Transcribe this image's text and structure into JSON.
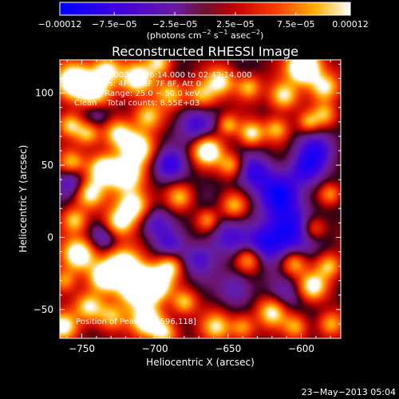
{
  "chart_data": {
    "type": "heatmap",
    "title": "Reconstructed RHESSI Image",
    "xlabel": "Heliocentric X (arcsec)",
    "ylabel": "Heliocentric Y (arcsec)",
    "xlim": [
      -765,
      -573
    ],
    "ylim": [
      -70,
      123
    ],
    "xticks": [
      -750,
      -700,
      -650,
      -600
    ],
    "xtick_labels": [
      "−750",
      "−700",
      "−650",
      "−600"
    ],
    "yticks": [
      -50,
      0,
      50,
      100
    ],
    "ytick_labels": [
      "−50",
      "0",
      "50",
      "100"
    ],
    "colorbar": {
      "range": [
        -0.00012,
        0.00012
      ],
      "ticks": [
        -0.00012,
        -7.5e-05,
        -2.5e-05,
        2.5e-05,
        7.5e-05,
        0.00012
      ],
      "tick_labels": [
        "−0.00012",
        "−7.5e−05",
        "−2.5e−05",
        "2.5e−05",
        "7.5e−05",
        "0.00012"
      ],
      "units_prefix": "(photons cm",
      "units_exp1": "−2",
      "units_mid": " s",
      "units_exp2": "−1",
      "units_mid2": " asec",
      "units_exp3": "−2",
      "units_suffix": ")"
    },
    "annotations": {
      "time_range": "4−Jul−2003 02:36:14.000 to 02:42:14.000",
      "detectors": "Detectors: 4F 5F 6F 7F 8F, Att 0",
      "energy": "Energy Range: 25.0 − 50.0 keV",
      "clean": "Clean",
      "total_counts": "Total counts: 8.55E+03",
      "peak": "Position of Peak = [−596,118]"
    },
    "peak": [
      -596,
      118
    ],
    "blobs": [
      [
        -755,
        108,
        1.7,
        9
      ],
      [
        -741,
        101,
        1.3,
        8
      ],
      [
        -733,
        116,
        1.3,
        7
      ],
      [
        -712,
        110,
        1.4,
        8
      ],
      [
        -705,
        84,
        1.1,
        7
      ],
      [
        -690,
        100,
        1.0,
        7
      ],
      [
        -697,
        121,
        1.1,
        6
      ],
      [
        -668,
        98,
        1.0,
        7
      ],
      [
        -655,
        108,
        1.2,
        7
      ],
      [
        -636,
        104,
        1.0,
        6
      ],
      [
        -612,
        98,
        1.2,
        7
      ],
      [
        -598,
        118,
        2.2,
        8
      ],
      [
        -584,
        104,
        1.2,
        7
      ],
      [
        -584,
        85,
        0.9,
        6
      ],
      [
        -758,
        78,
        1.1,
        6
      ],
      [
        -746,
        72,
        1.0,
        6
      ],
      [
        -725,
        72,
        1.2,
        7
      ],
      [
        -712,
        62,
        1.5,
        8
      ],
      [
        -757,
        52,
        0.9,
        6
      ],
      [
        -735,
        47,
        1.6,
        8
      ],
      [
        -745,
        30,
        1.2,
        7
      ],
      [
        -719,
        43,
        1.5,
        8
      ],
      [
        -715,
        22,
        1.5,
        8
      ],
      [
        -725,
        10,
        1.2,
        7
      ],
      [
        -755,
        12,
        1.0,
        6
      ],
      [
        -752,
        -12,
        1.6,
        8
      ],
      [
        -735,
        -28,
        1.3,
        7
      ],
      [
        -722,
        -20,
        1.7,
        9
      ],
      [
        -712,
        -35,
        1.9,
        9
      ],
      [
        -700,
        -32,
        1.6,
        8
      ],
      [
        -690,
        -20,
        1.0,
        6
      ],
      [
        -745,
        -48,
        1.2,
        7
      ],
      [
        -730,
        -55,
        1.0,
        7
      ],
      [
        -705,
        -58,
        1.5,
        8
      ],
      [
        -680,
        -45,
        1.0,
        6
      ],
      [
        -763,
        -62,
        1.3,
        7
      ],
      [
        -664,
        60,
        1.6,
        7
      ],
      [
        -648,
        50,
        1.0,
        6
      ],
      [
        -634,
        72,
        1.2,
        6
      ],
      [
        -650,
        78,
        0.9,
        5
      ],
      [
        -617,
        75,
        1.0,
        6
      ],
      [
        -595,
        80,
        0.8,
        5
      ],
      [
        -683,
        28,
        0.9,
        6
      ],
      [
        -664,
        12,
        0.8,
        5
      ],
      [
        -646,
        22,
        0.9,
        6
      ],
      [
        -636,
        -15,
        1.0,
        6
      ],
      [
        -605,
        -18,
        1.0,
        6
      ],
      [
        -592,
        -34,
        1.3,
        7
      ],
      [
        -581,
        -20,
        1.0,
        6
      ],
      [
        -592,
        6,
        0.9,
        6
      ],
      [
        -580,
        30,
        0.8,
        5
      ],
      [
        -620,
        -52,
        1.2,
        7
      ],
      [
        -658,
        -62,
        1.1,
        7
      ],
      [
        -640,
        -62,
        0.9,
        6
      ],
      [
        -693,
        -66,
        1.0,
        6
      ],
      [
        -762,
        -30,
        0.9,
        6
      ],
      [
        -604,
        -62,
        0.9,
        6
      ],
      [
        -580,
        -60,
        0.9,
        6
      ],
      [
        -690,
        50,
        -0.9,
        8
      ],
      [
        -672,
        78,
        -0.8,
        9
      ],
      [
        -615,
        30,
        -1.1,
        10
      ],
      [
        -608,
        5,
        -1.2,
        12
      ],
      [
        -625,
        -5,
        -0.9,
        9
      ],
      [
        -632,
        45,
        -0.9,
        9
      ],
      [
        -590,
        60,
        -0.9,
        9
      ],
      [
        -670,
        -15,
        -0.7,
        8
      ],
      [
        -645,
        -35,
        -0.6,
        8
      ],
      [
        -700,
        10,
        -0.7,
        8
      ],
      [
        -740,
        85,
        -0.6,
        7
      ],
      [
        -757,
        38,
        -0.7,
        7
      ],
      [
        -735,
        0,
        -0.6,
        7
      ],
      [
        -690,
        -5,
        -0.6,
        7
      ],
      [
        -597,
        46,
        -0.8,
        8
      ],
      [
        -650,
        0,
        -0.7,
        9
      ],
      [
        -610,
        -40,
        -0.5,
        8
      ]
    ]
  },
  "footer": {
    "date": "23−May−2013 05:04"
  }
}
